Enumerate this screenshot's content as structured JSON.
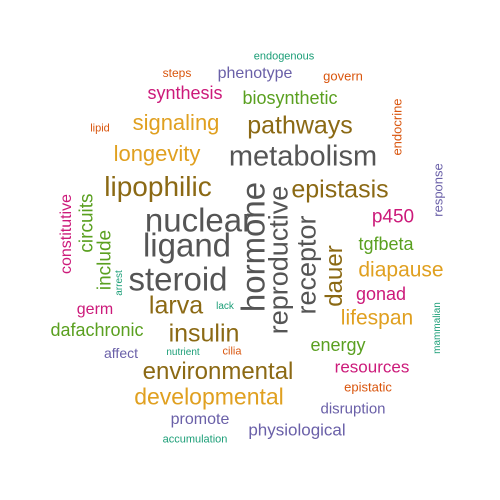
{
  "palette": {
    "dark_gray": "#555555",
    "brown": "#8b6914",
    "gold": "#e0a020",
    "magenta": "#cc1a7a",
    "green": "#5aa020",
    "purple": "#6a60a8",
    "orange": "#d9550d",
    "teal": "#1b9e77"
  },
  "words": [
    {
      "text": "nuclear",
      "color": "#555555"
    },
    {
      "text": "ligand",
      "color": "#555555"
    },
    {
      "text": "steroid",
      "color": "#555555"
    },
    {
      "text": "metabolism",
      "color": "#555555"
    },
    {
      "text": "hormone",
      "color": "#555555"
    },
    {
      "text": "reproductive",
      "color": "#555555"
    },
    {
      "text": "receptor",
      "color": "#555555"
    },
    {
      "text": "pathways",
      "color": "#8b6914"
    },
    {
      "text": "lipophilic",
      "color": "#8b6914"
    },
    {
      "text": "epistasis",
      "color": "#8b6914"
    },
    {
      "text": "larva",
      "color": "#8b6914"
    },
    {
      "text": "insulin",
      "color": "#8b6914"
    },
    {
      "text": "environmental",
      "color": "#8b6914"
    },
    {
      "text": "dauer",
      "color": "#8b6914"
    },
    {
      "text": "signaling",
      "color": "#e0a020"
    },
    {
      "text": "longevity",
      "color": "#e0a020"
    },
    {
      "text": "developmental",
      "color": "#e0a020"
    },
    {
      "text": "diapause",
      "color": "#e0a020"
    },
    {
      "text": "lifespan",
      "color": "#e0a020"
    },
    {
      "text": "synthesis",
      "color": "#cc1a7a"
    },
    {
      "text": "constitutive",
      "color": "#cc1a7a"
    },
    {
      "text": "p450",
      "color": "#cc1a7a"
    },
    {
      "text": "gonad",
      "color": "#cc1a7a"
    },
    {
      "text": "germ",
      "color": "#cc1a7a"
    },
    {
      "text": "resources",
      "color": "#cc1a7a"
    },
    {
      "text": "biosynthetic",
      "color": "#5aa020"
    },
    {
      "text": "circuits",
      "color": "#5aa020"
    },
    {
      "text": "include",
      "color": "#5aa020"
    },
    {
      "text": "tgfbeta",
      "color": "#5aa020"
    },
    {
      "text": "dafachronic",
      "color": "#5aa020"
    },
    {
      "text": "energy",
      "color": "#5aa020"
    },
    {
      "text": "phenotype",
      "color": "#6a60a8"
    },
    {
      "text": "response",
      "color": "#6a60a8"
    },
    {
      "text": "affect",
      "color": "#6a60a8"
    },
    {
      "text": "promote",
      "color": "#6a60a8"
    },
    {
      "text": "physiological",
      "color": "#6a60a8"
    },
    {
      "text": "disruption",
      "color": "#6a60a8"
    },
    {
      "text": "steps",
      "color": "#d9550d"
    },
    {
      "text": "govern",
      "color": "#d9550d"
    },
    {
      "text": "lipid",
      "color": "#d9550d"
    },
    {
      "text": "endocrine",
      "color": "#d9550d"
    },
    {
      "text": "cilia",
      "color": "#d9550d"
    },
    {
      "text": "epistatic",
      "color": "#d9550d"
    },
    {
      "text": "endogenous",
      "color": "#1b9e77"
    },
    {
      "text": "arrest",
      "color": "#1b9e77"
    },
    {
      "text": "lack",
      "color": "#1b9e77"
    },
    {
      "text": "nutrient",
      "color": "#1b9e77"
    },
    {
      "text": "mammalian",
      "color": "#1b9e77"
    },
    {
      "text": "accumulation",
      "color": "#1b9e77"
    }
  ]
}
